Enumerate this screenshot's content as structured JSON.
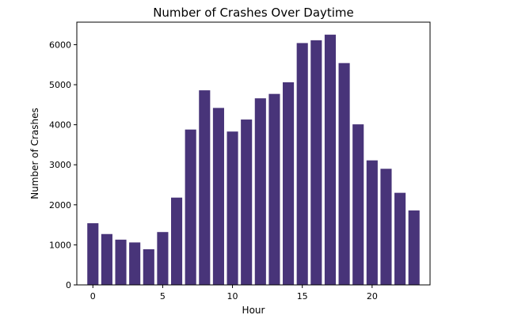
{
  "chart_data": {
    "type": "bar",
    "title": "Number of Crashes Over Daytime",
    "xlabel": "Hour",
    "ylabel": "Number of Crashes",
    "x": [
      0,
      1,
      2,
      3,
      4,
      5,
      6,
      7,
      8,
      9,
      10,
      11,
      12,
      13,
      14,
      15,
      16,
      17,
      18,
      19,
      20,
      21,
      22,
      23
    ],
    "values": [
      1540,
      1270,
      1130,
      1060,
      890,
      1320,
      2180,
      3880,
      4860,
      4420,
      3830,
      4130,
      4660,
      4770,
      5060,
      6040,
      6110,
      6250,
      5540,
      4010,
      3110,
      2900,
      2300,
      1860
    ],
    "xlim": [
      -1.15,
      24.15
    ],
    "ylim": [
      0,
      6562
    ],
    "xticks": [
      0,
      5,
      10,
      15,
      20
    ],
    "yticks": [
      0,
      1000,
      2000,
      3000,
      4000,
      5000,
      6000
    ],
    "bar_color": "#483479",
    "grid": false,
    "legend": "none"
  }
}
